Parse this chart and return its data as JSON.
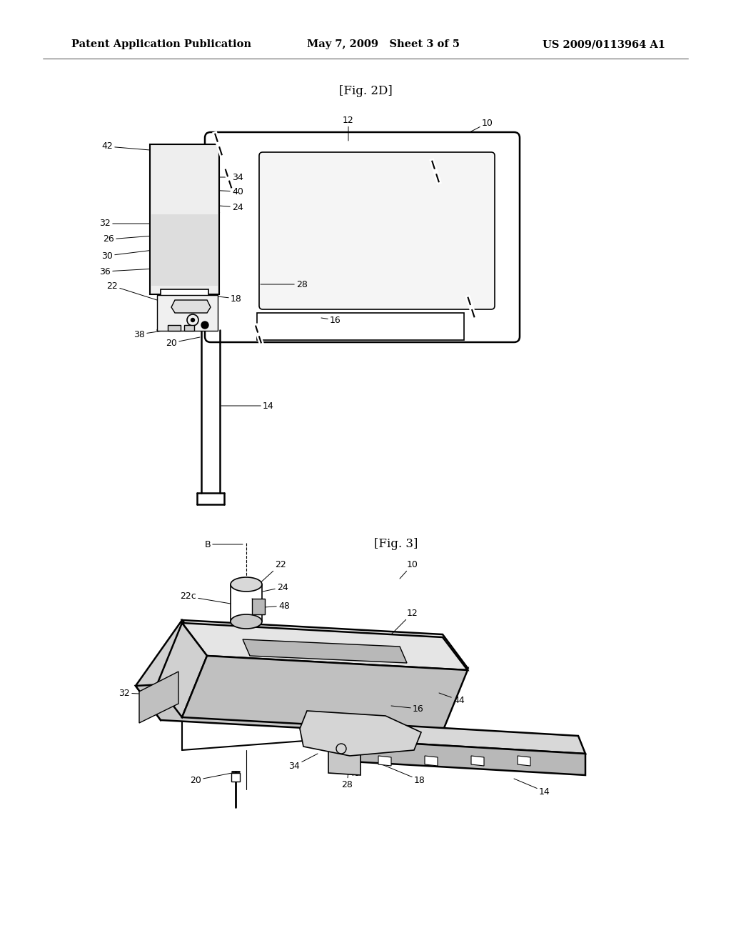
{
  "page_bg": "#ffffff",
  "header_text": "Patent Application Publication",
  "header_date": "May 7, 2009   Sheet 3 of 5",
  "header_patent": "US 2009/0113964 A1",
  "fig_top_label": "[Fig. 2D]",
  "fig_bottom_label": "[Fig. 3]",
  "fig_width": 10.24,
  "fig_height": 13.2,
  "dpi": 100
}
